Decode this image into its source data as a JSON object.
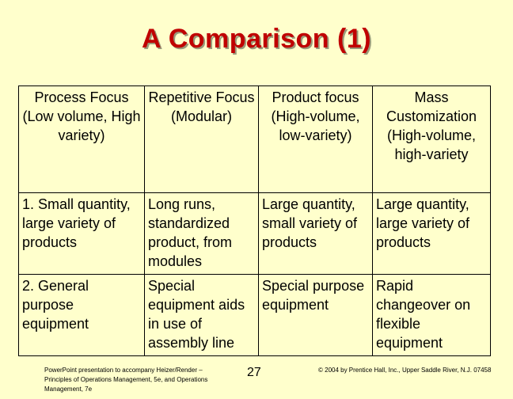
{
  "title": "A Comparison (1)",
  "table": {
    "headers": [
      {
        "name": "Process Focus",
        "desc": "(Low volume, High variety)"
      },
      {
        "name": "Repetitive Focus",
        "desc": "(Modular)"
      },
      {
        "name": "Product focus",
        "desc": "(High-volume, low-variety)"
      },
      {
        "name": "Mass Customization",
        "desc": "(High-volume, high-variety"
      }
    ],
    "rows": [
      [
        "1.  Small quantity, large variety of products",
        "Long runs, standardized product, from modules",
        "Large quantity, small variety of products",
        "Large quantity, large variety of products"
      ],
      [
        "2.  General purpose equipment",
        "Special equipment aids in use of assembly line",
        "Special purpose equipment",
        "Rapid changeover on flexible equipment"
      ]
    ]
  },
  "footer": {
    "left": "PowerPoint presentation to accompany Heizer/Render – Principles of Operations Management, 5e, and Operations Management, 7e",
    "page_number": "27",
    "right": "© 2004 by Prentice Hall, Inc., Upper Saddle River, N.J. 07458"
  }
}
